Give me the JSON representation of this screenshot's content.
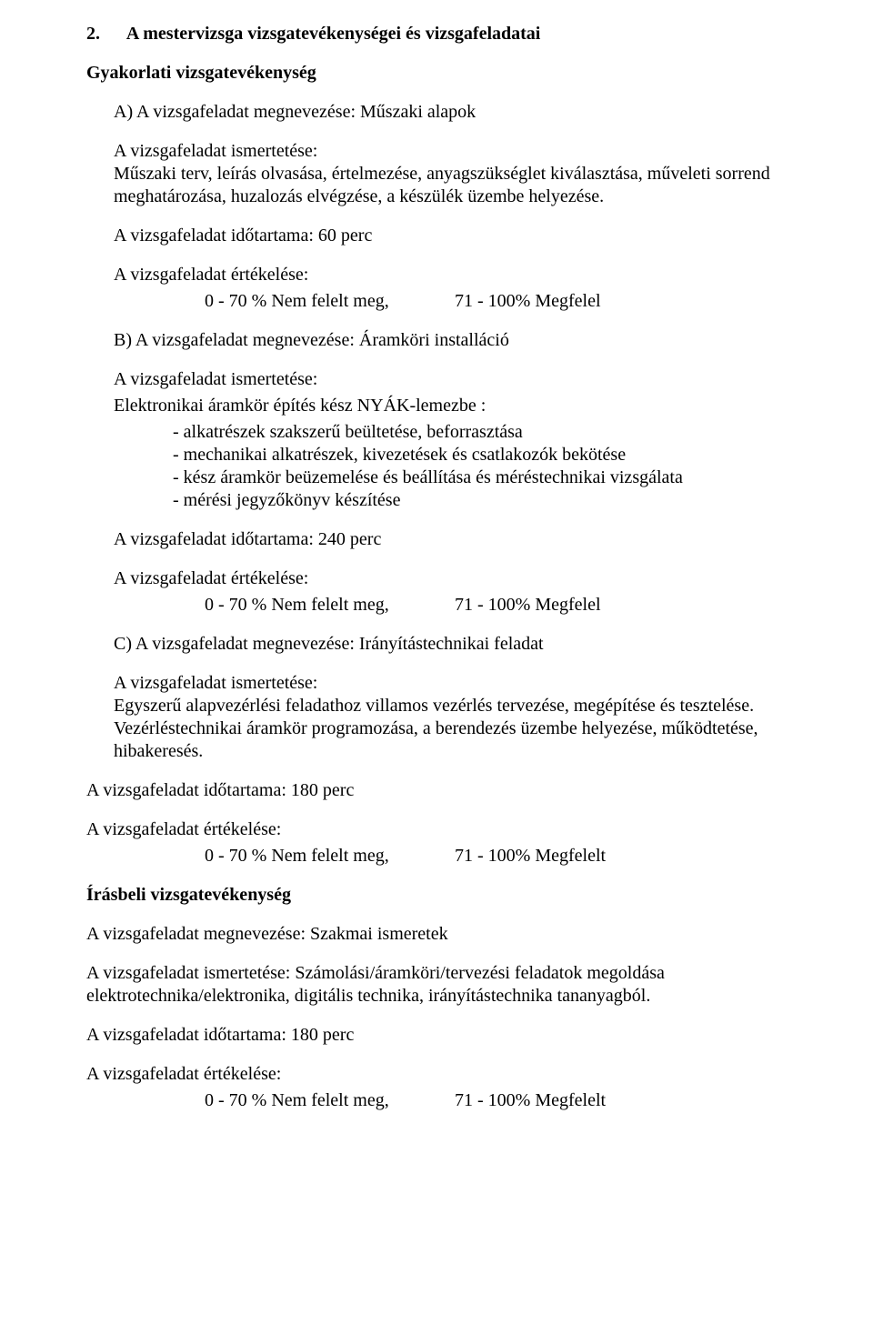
{
  "title_num": "2.",
  "title_text": "A mestervizsga vizsgatevékenységei és vizsgafeladatai",
  "practical_heading": "Gyakorlati vizsgatevékenység",
  "taskA": {
    "name_line": "A) A vizsgafeladat megnevezése: Műszaki alapok",
    "desc_label": "A vizsgafeladat ismertetése:",
    "desc_text": "Műszaki terv, leírás olvasása, értelmezése, anyagszükséglet kiválasztása, műveleti sorrend meghatározása, huzalozás elvégzése, a készülék üzembe helyezése.",
    "duration": "A vizsgafeladat időtartama:  60 perc",
    "eval_label": "A vizsgafeladat értékelése:",
    "eval_fail": "0 - 70 % Nem felelt meg,",
    "eval_pass": "71 - 100% Megfelel"
  },
  "taskB": {
    "name_line": "B) A vizsgafeladat megnevezése: Áramköri installáció",
    "desc_label": "A vizsgafeladat ismertetése:",
    "desc_lead": "Elektronikai áramkör építés kész NYÁK-lemezbe :",
    "bullets": [
      "- alkatrészek szakszerű beültetése, beforrasztása",
      "- mechanikai alkatrészek, kivezetések és csatlakozók bekötése",
      "- kész áramkör beüzemelése és beállítása és méréstechnikai vizsgálata",
      "- mérési jegyzőkönyv készítése"
    ],
    "duration": "A vizsgafeladat időtartama:  240 perc",
    "eval_label": "A vizsgafeladat értékelése:",
    "eval_fail": "0 - 70 % Nem felelt meg,",
    "eval_pass": "71 - 100% Megfelel"
  },
  "taskC": {
    "name_line": "C) A vizsgafeladat megnevezése: Irányítástechnikai feladat",
    "desc_label": "A vizsgafeladat ismertetése:",
    "desc_text": "Egyszerű alapvezérlési feladathoz villamos vezérlés tervezése, megépítése és tesztelése. Vezérléstechnikai áramkör programozása, a berendezés üzembe helyezése, működtetése, hibakeresés.",
    "duration": "A vizsgafeladat időtartama:  180 perc",
    "eval_label": "A vizsgafeladat értékelése:",
    "eval_fail": "0 - 70 % Nem felelt meg,",
    "eval_pass": "71 - 100% Megfelelt"
  },
  "written_heading": "Írásbeli vizsgatevékenység",
  "written": {
    "name_line": "A vizsgafeladat megnevezése: Szakmai ismeretek",
    "desc_line": "A vizsgafeladat ismertetése: Számolási/áramköri/tervezési feladatok megoldása elektrotechnika/elektronika, digitális technika, irányítástechnika tananyagból.",
    "duration": "A vizsgafeladat időtartama: 180 perc",
    "eval_label": "A vizsgafeladat értékelése:",
    "eval_fail": "0 - 70 % Nem felelt meg,",
    "eval_pass": "71 - 100% Megfelelt"
  }
}
